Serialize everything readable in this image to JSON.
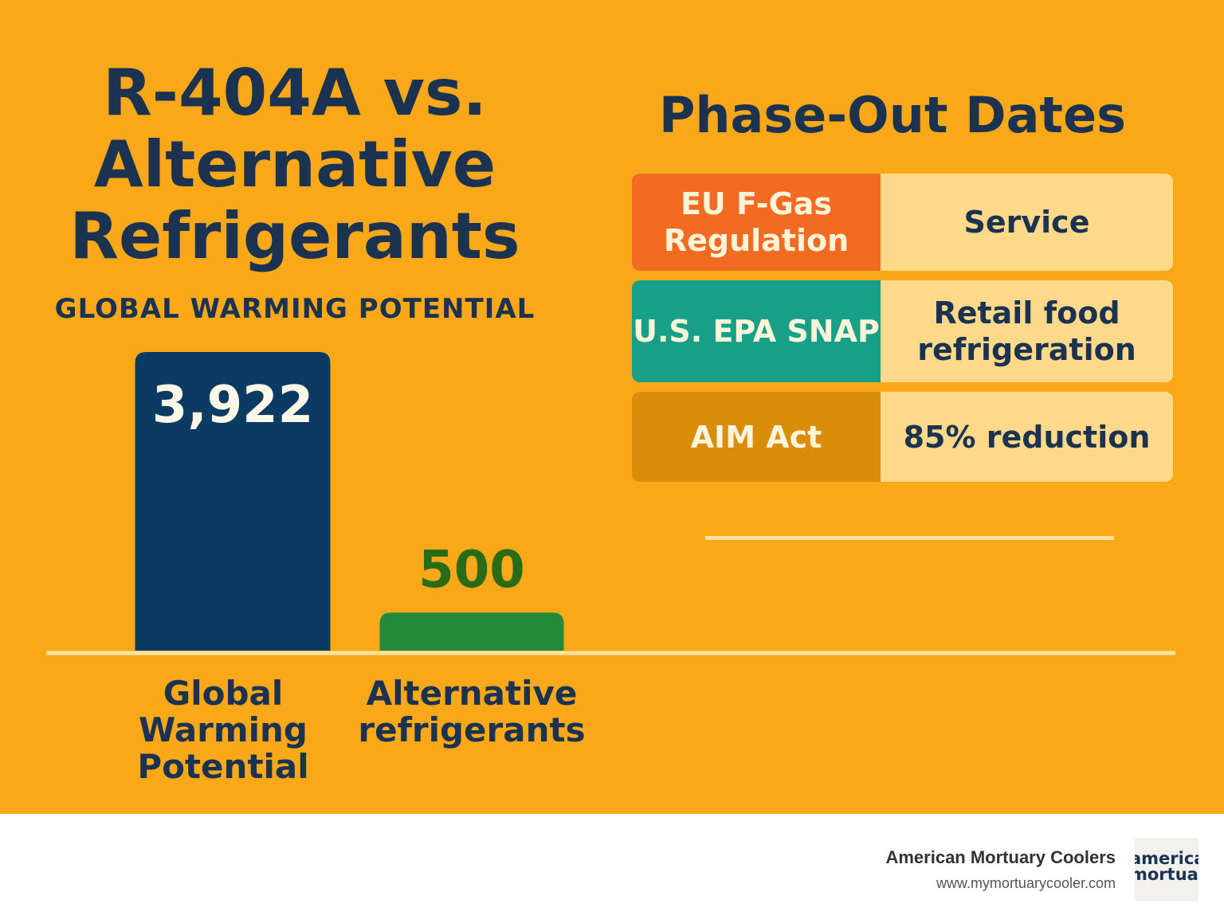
{
  "chart_data": {
    "type": "bar",
    "title": "R-404A vs. Alternative Refrigerants",
    "subtitle": "GLOBAL WARMING POTENTIAL",
    "categories": [
      "Global Warming Potential",
      "Alternative refrigerants"
    ],
    "values": [
      3922,
      500
    ],
    "value_labels": [
      "3,922",
      "500"
    ],
    "colors": [
      "#0b3a63",
      "#228b3b"
    ]
  },
  "panel": {
    "title": "Phase-Out Dates",
    "rows": [
      [
        "EU F-Gas Regulation",
        "Service"
      ],
      [
        "U.S. EPA SNAP",
        "Retail food refrigeration"
      ],
      [
        "AIM Act",
        "85% reduction"
      ]
    ]
  },
  "footer": {
    "brand": "American Mortuary Coolers",
    "url": "www.mymortuarycooler.com",
    "logo": [
      "american",
      "mortuary"
    ]
  }
}
